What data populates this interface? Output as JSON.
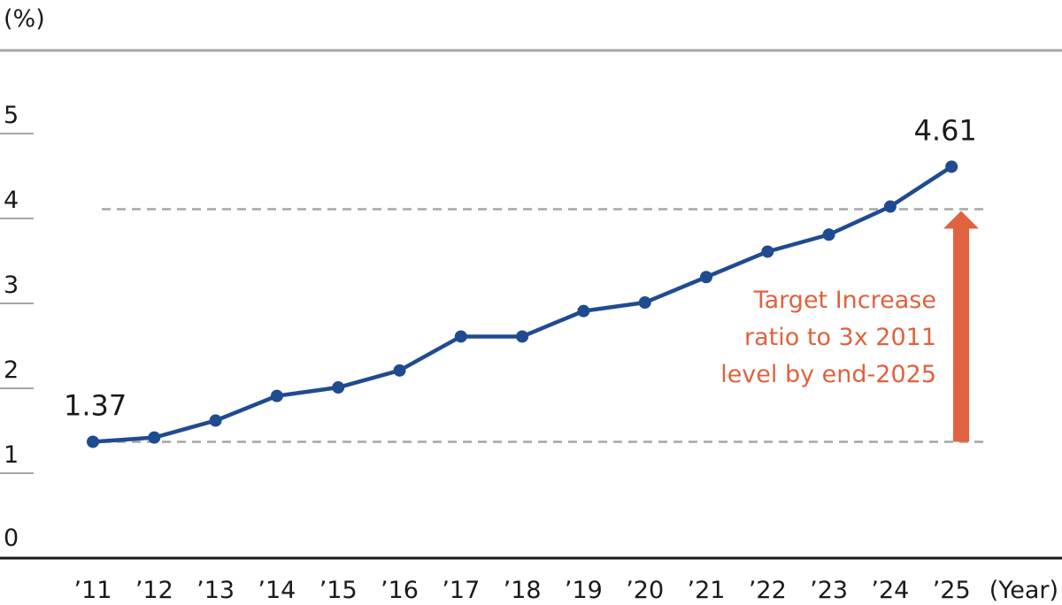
{
  "chart_data": {
    "type": "line",
    "ylabel": "(%)",
    "xlabel": "(Year)",
    "ylim": [
      0,
      5
    ],
    "yticks": [
      "0",
      "1",
      "2",
      "3",
      "4",
      "5"
    ],
    "categories": [
      "’11",
      "’12",
      "’13",
      "’14",
      "’15",
      "’16",
      "’17",
      "’18",
      "’19",
      "’20",
      "’21",
      "’22",
      "’23",
      "’24",
      "’25"
    ],
    "series": [
      {
        "values": [
          1.37,
          1.42,
          1.62,
          1.91,
          2.01,
          2.21,
          2.61,
          2.61,
          2.91,
          3.01,
          3.31,
          3.61,
          3.81,
          4.14,
          4.61
        ]
      }
    ],
    "data_labels": [
      {
        "category": "’11",
        "text": "1.37"
      },
      {
        "category": "’25",
        "text": "4.61"
      }
    ],
    "reference_lines": [
      {
        "value": 1.37,
        "style": "dashed"
      },
      {
        "value": 4.11,
        "style": "dashed"
      }
    ],
    "annotation": {
      "lines": [
        "Target Increase",
        "ratio to 3x 2011",
        "level by end-2025"
      ],
      "arrow_from": 1.37,
      "arrow_to": 4.11
    },
    "grid": false,
    "colors": {
      "line": "#1f4b91",
      "arrow": "#e0623e",
      "reference": "#a6a6a6",
      "axis": "#1a1a1a",
      "top_rule": "#a6a6a6"
    }
  }
}
